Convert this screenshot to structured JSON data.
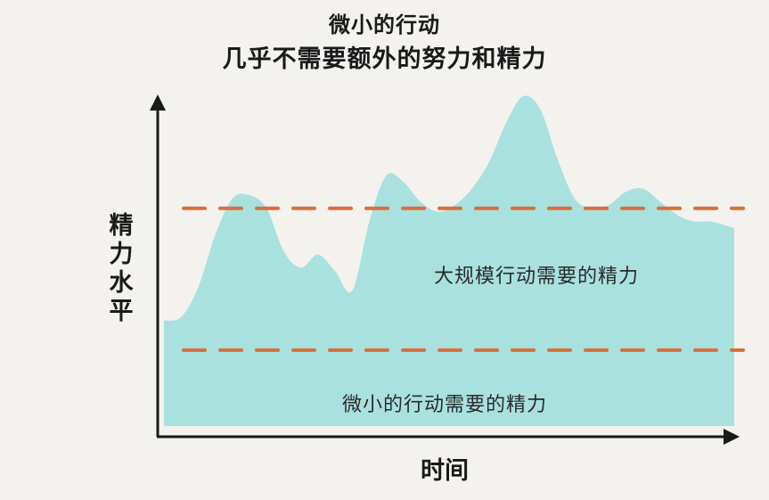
{
  "chart_data": {
    "type": "area",
    "title_lines": [
      "微小的行动",
      "几乎不需要额外的努力和精力"
    ],
    "xlabel": "时间",
    "ylabel": "精力水平",
    "xlim": [
      0,
      100
    ],
    "ylim": [
      0,
      100
    ],
    "grid": false,
    "fill_color": "#a9e1df",
    "dash_color": "#d86f3c",
    "axis_color": "#1a1a1a",
    "series": [
      {
        "x": [
          0,
          3,
          6,
          9,
          12,
          15,
          18,
          21,
          24,
          27,
          30,
          33,
          36,
          39,
          42,
          45,
          48,
          51,
          54,
          57,
          60,
          63,
          66,
          69,
          72,
          75,
          78,
          81,
          84,
          87,
          90,
          93,
          96,
          100
        ],
        "y": [
          32,
          33,
          42,
          58,
          69,
          70,
          66,
          53,
          48,
          52,
          47,
          41,
          62,
          76,
          74,
          68,
          65,
          67,
          72,
          80,
          92,
          100,
          96,
          81,
          69,
          66,
          67,
          71,
          72,
          68,
          64,
          62,
          62,
          60
        ]
      }
    ],
    "reference_lines": [
      {
        "label": "大规模行动需要的精力",
        "y": 66
      },
      {
        "label": "微小的行动需要的精力",
        "y": 23
      }
    ]
  }
}
